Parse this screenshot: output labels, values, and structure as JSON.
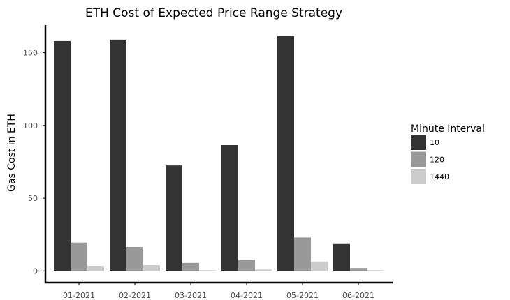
{
  "chart_data": {
    "type": "bar",
    "title": "ETH Cost of Expected Price Range Strategy",
    "xlabel": "",
    "ylabel": "Gas Cost in ETH",
    "categories": [
      "01-2021",
      "02-2021",
      "03-2021",
      "04-2021",
      "05-2021",
      "06-2021"
    ],
    "series": [
      {
        "name": "10",
        "color": "#333333",
        "values": [
          158,
          159,
          72.5,
          86.5,
          161.5,
          18.5
        ]
      },
      {
        "name": "120",
        "color": "#999999",
        "values": [
          19.5,
          16.5,
          5.5,
          7.5,
          23,
          2
        ]
      },
      {
        "name": "1440",
        "color": "#cccccc",
        "values": [
          3.5,
          4,
          0.5,
          1,
          6.5,
          0.5
        ]
      }
    ],
    "ylim": [
      -8,
      169
    ],
    "yticks": [
      0,
      50,
      100,
      150
    ],
    "grid": false,
    "legend": {
      "title": "Minute Interval",
      "position": "right"
    }
  }
}
